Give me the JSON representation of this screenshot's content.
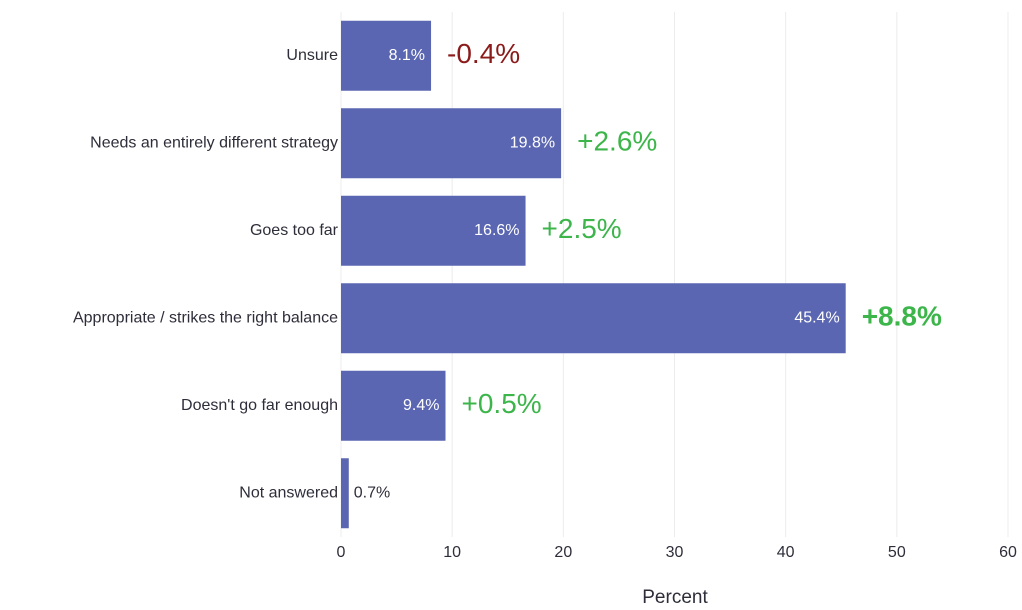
{
  "chart_data": {
    "type": "barh",
    "categories": [
      "Unsure",
      "Needs an entirely different strategy",
      "Goes too far",
      "Appropriate / strikes the right balance",
      "Doesn't go far enough",
      "Not answered"
    ],
    "values": [
      8.1,
      19.8,
      16.6,
      45.4,
      9.4,
      0.7
    ],
    "value_labels": [
      "8.1%",
      "19.8%",
      "16.6%",
      "45.4%",
      "9.4%",
      "0.7%"
    ],
    "annotations": [
      {
        "text": "-0.4%",
        "color": "#8b1a1a",
        "bold": false
      },
      {
        "text": "+2.6%",
        "color": "#3cb54a",
        "bold": false
      },
      {
        "text": "+2.5%",
        "color": "#3cb54a",
        "bold": false
      },
      {
        "text": "+8.8%",
        "color": "#3cb54a",
        "bold": true
      },
      {
        "text": "+0.5%",
        "color": "#3cb54a",
        "bold": false
      },
      null
    ],
    "color": "#5a66b1",
    "xlabel": "Percent",
    "xlim": [
      0,
      60
    ],
    "xticks": [
      0,
      10,
      20,
      30,
      40,
      50,
      60
    ],
    "grid": true
  }
}
